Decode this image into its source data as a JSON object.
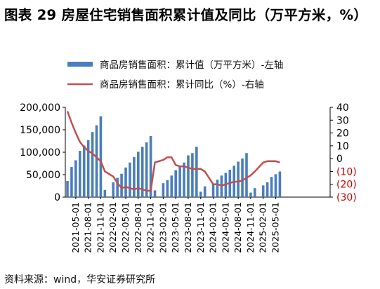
{
  "title": "图表 29 房屋住宅销售面积累计值及同比（万平方米，%）",
  "source": "资料来源：wind，华安证券研究所",
  "colors": {
    "bar": "#4a7ebb",
    "line": "#c0504d",
    "negative_tick": "#cc0000"
  },
  "chart_data": {
    "type": "bar+line",
    "legend": {
      "placement": "top-center"
    },
    "grid": false,
    "x_tick_labels": [
      "2021-05-01",
      "2021-08-01",
      "2021-11-01",
      "2022-02-01",
      "2022-05-01",
      "2022-08-01",
      "2022-11-01",
      "2023-02-01",
      "2023-05-01",
      "2023-08-01",
      "2023-11-01",
      "2024-02-01",
      "2024-05-01",
      "2024-08-01",
      "2024-11-01",
      "2025-02-01",
      "2025-05-01"
    ],
    "x": [
      "2021-03",
      "2021-04",
      "2021-05",
      "2021-06",
      "2021-07",
      "2021-08",
      "2021-09",
      "2021-10",
      "2021-11",
      "2021-12",
      "2022-02",
      "2022-03",
      "2022-04",
      "2022-05",
      "2022-06",
      "2022-07",
      "2022-08",
      "2022-09",
      "2022-10",
      "2022-11",
      "2022-12",
      "2023-02",
      "2023-03",
      "2023-04",
      "2023-05",
      "2023-06",
      "2023-07",
      "2023-08",
      "2023-09",
      "2023-10",
      "2023-11",
      "2023-12",
      "2024-02",
      "2024-03",
      "2024-04",
      "2024-05",
      "2024-06",
      "2024-07",
      "2024-08",
      "2024-09",
      "2024-10",
      "2024-11",
      "2024-12",
      "2025-02",
      "2025-03",
      "2025-04",
      "2025-05",
      "2025-06"
    ],
    "left_axis": {
      "ylim": [
        0,
        200000
      ],
      "ticks": [
        "0",
        "50,000",
        "100,000",
        "150,000",
        "200,000"
      ],
      "tick_values": [
        0,
        50000,
        100000,
        150000,
        200000
      ]
    },
    "right_axis": {
      "ylim": [
        -30,
        40
      ],
      "ticks": [
        "(30)",
        "(20)",
        "(10)",
        "0",
        "10",
        "20",
        "30",
        "40"
      ],
      "tick_values": [
        -30,
        -20,
        -10,
        0,
        10,
        20,
        30,
        40
      ]
    },
    "series": [
      {
        "name": "商品房销售面积：累计值（万平方米）-左轴",
        "type": "bar",
        "axis": "left",
        "values": [
          36000,
          67000,
          82000,
          103000,
          115000,
          127000,
          145000,
          160000,
          180000,
          16000,
          33000,
          43000,
          52000,
          66000,
          77000,
          89000,
          101000,
          112000,
          122000,
          136000,
          15000,
          31000,
          38000,
          48000,
          60000,
          68000,
          77000,
          93000,
          98000,
          112000,
          12000,
          24000,
          30000,
          39000,
          48000,
          54000,
          61000,
          70000,
          79000,
          86000,
          98000,
          10000,
          20000,
          26000,
          33000,
          45000,
          51000,
          57000
        ]
      },
      {
        "name": "商品房销售面积：累计同比（%）-右轴",
        "type": "line",
        "axis": "right",
        "values": [
          37,
          28,
          20,
          13,
          9,
          6,
          4,
          1,
          -2,
          -10,
          -14,
          -19,
          -23,
          -22,
          -23,
          -24,
          -23,
          -24,
          -25,
          -25,
          -3,
          -1,
          1,
          1,
          -5,
          -6,
          -6,
          -7,
          -8,
          -8,
          -8,
          -10,
          -20,
          -20,
          -21,
          -20,
          -19,
          -18,
          -18,
          -17,
          -15,
          -13,
          -10,
          -3,
          -2,
          -2,
          -2,
          -3
        ]
      }
    ]
  }
}
